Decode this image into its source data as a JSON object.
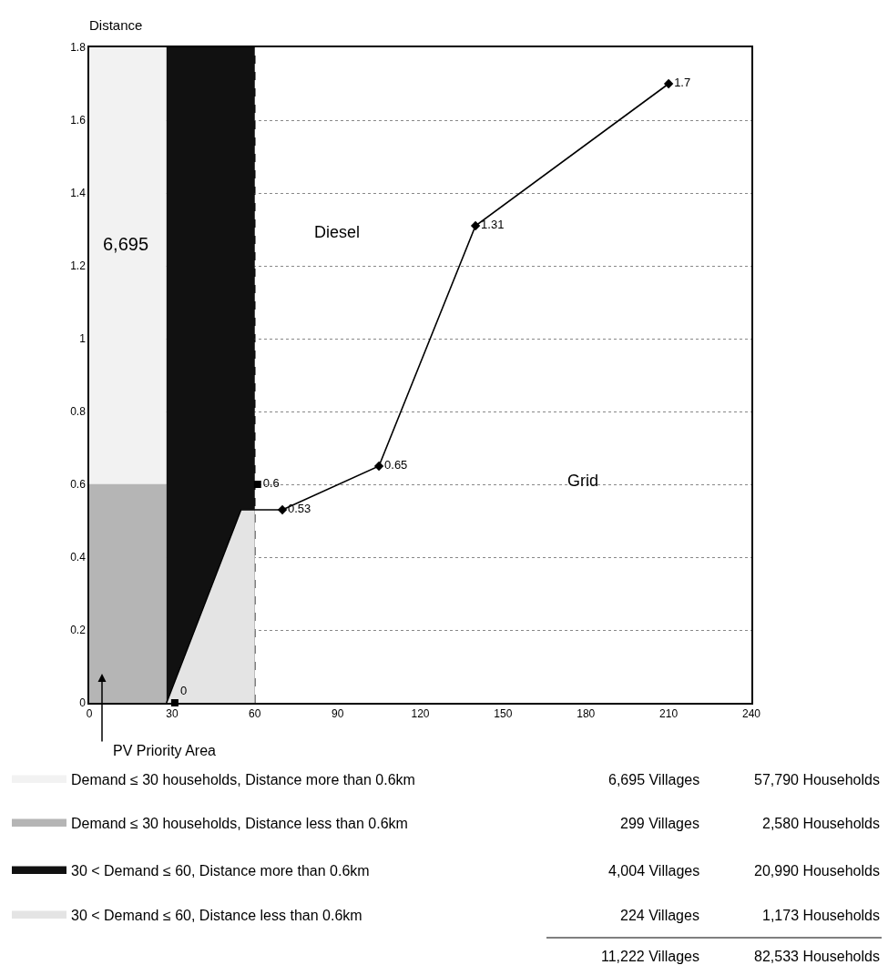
{
  "chart_data": {
    "type": "line",
    "ylabel": "Distance",
    "xlim": [
      0,
      240
    ],
    "xticks": [
      0,
      30,
      60,
      90,
      120,
      150,
      180,
      210,
      240
    ],
    "ylim": [
      0,
      1.8
    ],
    "yticks": [
      0,
      0.2,
      0.4,
      0.6,
      0.8,
      1,
      1.2,
      1.4,
      1.6,
      1.8
    ],
    "grid": "y",
    "legend": "bottom",
    "series": [
      {
        "type": "area",
        "name": "Demand ≤ 30 households, Distance more than 0.6km",
        "color": "#f2f2f2",
        "x": [
          0,
          28
        ],
        "values": [
          1.8,
          1.8
        ]
      },
      {
        "type": "area",
        "name": "Demand ≤ 30 households, Distance less than 0.6km",
        "color": "#b5b5b5",
        "x": [
          0,
          28
        ],
        "values": [
          0.6,
          0.6
        ]
      },
      {
        "type": "area",
        "name": "30 < Demand ≤ 60, Distance more than 0.6km",
        "color": "#111111",
        "x": [
          28,
          55,
          60
        ],
        "values": [
          1.8,
          1.8,
          1.8
        ]
      },
      {
        "type": "area",
        "name": "30 < Demand ≤ 60, Distance less than 0.6km",
        "color": "#e4e4e4",
        "x": [
          28,
          55,
          60
        ],
        "values": [
          0,
          0.53,
          0.53
        ]
      },
      {
        "color": "#000000",
        "marker": "none",
        "x": [
          28,
          55,
          70
        ],
        "values": [
          0,
          0.53,
          0.53
        ]
      },
      {
        "color": "#000000",
        "marker": "diamond",
        "x": [
          70,
          105,
          140,
          210
        ],
        "values": [
          0.53,
          0.65,
          1.31,
          1.7
        ],
        "value_labels": [
          "0.53",
          "0.65",
          "1.31",
          "1.7"
        ]
      },
      {
        "type": "scatter",
        "color": "#000000",
        "marker": "square",
        "x": [
          31,
          61
        ],
        "values": [
          0,
          0.6
        ],
        "value_labels": [
          "0",
          "0.6"
        ]
      }
    ],
    "ref_lines": [
      {
        "axis": "x",
        "value": 60,
        "color": "#000000",
        "line_style": "dashed"
      }
    ],
    "annotations": [
      "6,695",
      "Diesel",
      "Grid",
      "PV Priority Area",
      "6,695 Villages",
      "57,790 Households",
      "299 Villages",
      "2,580 Households",
      "4,004 Villages",
      "20,990 Households",
      "224 Villages",
      "1,173 Households",
      "11,222 Villages",
      "82,533 Households"
    ]
  }
}
